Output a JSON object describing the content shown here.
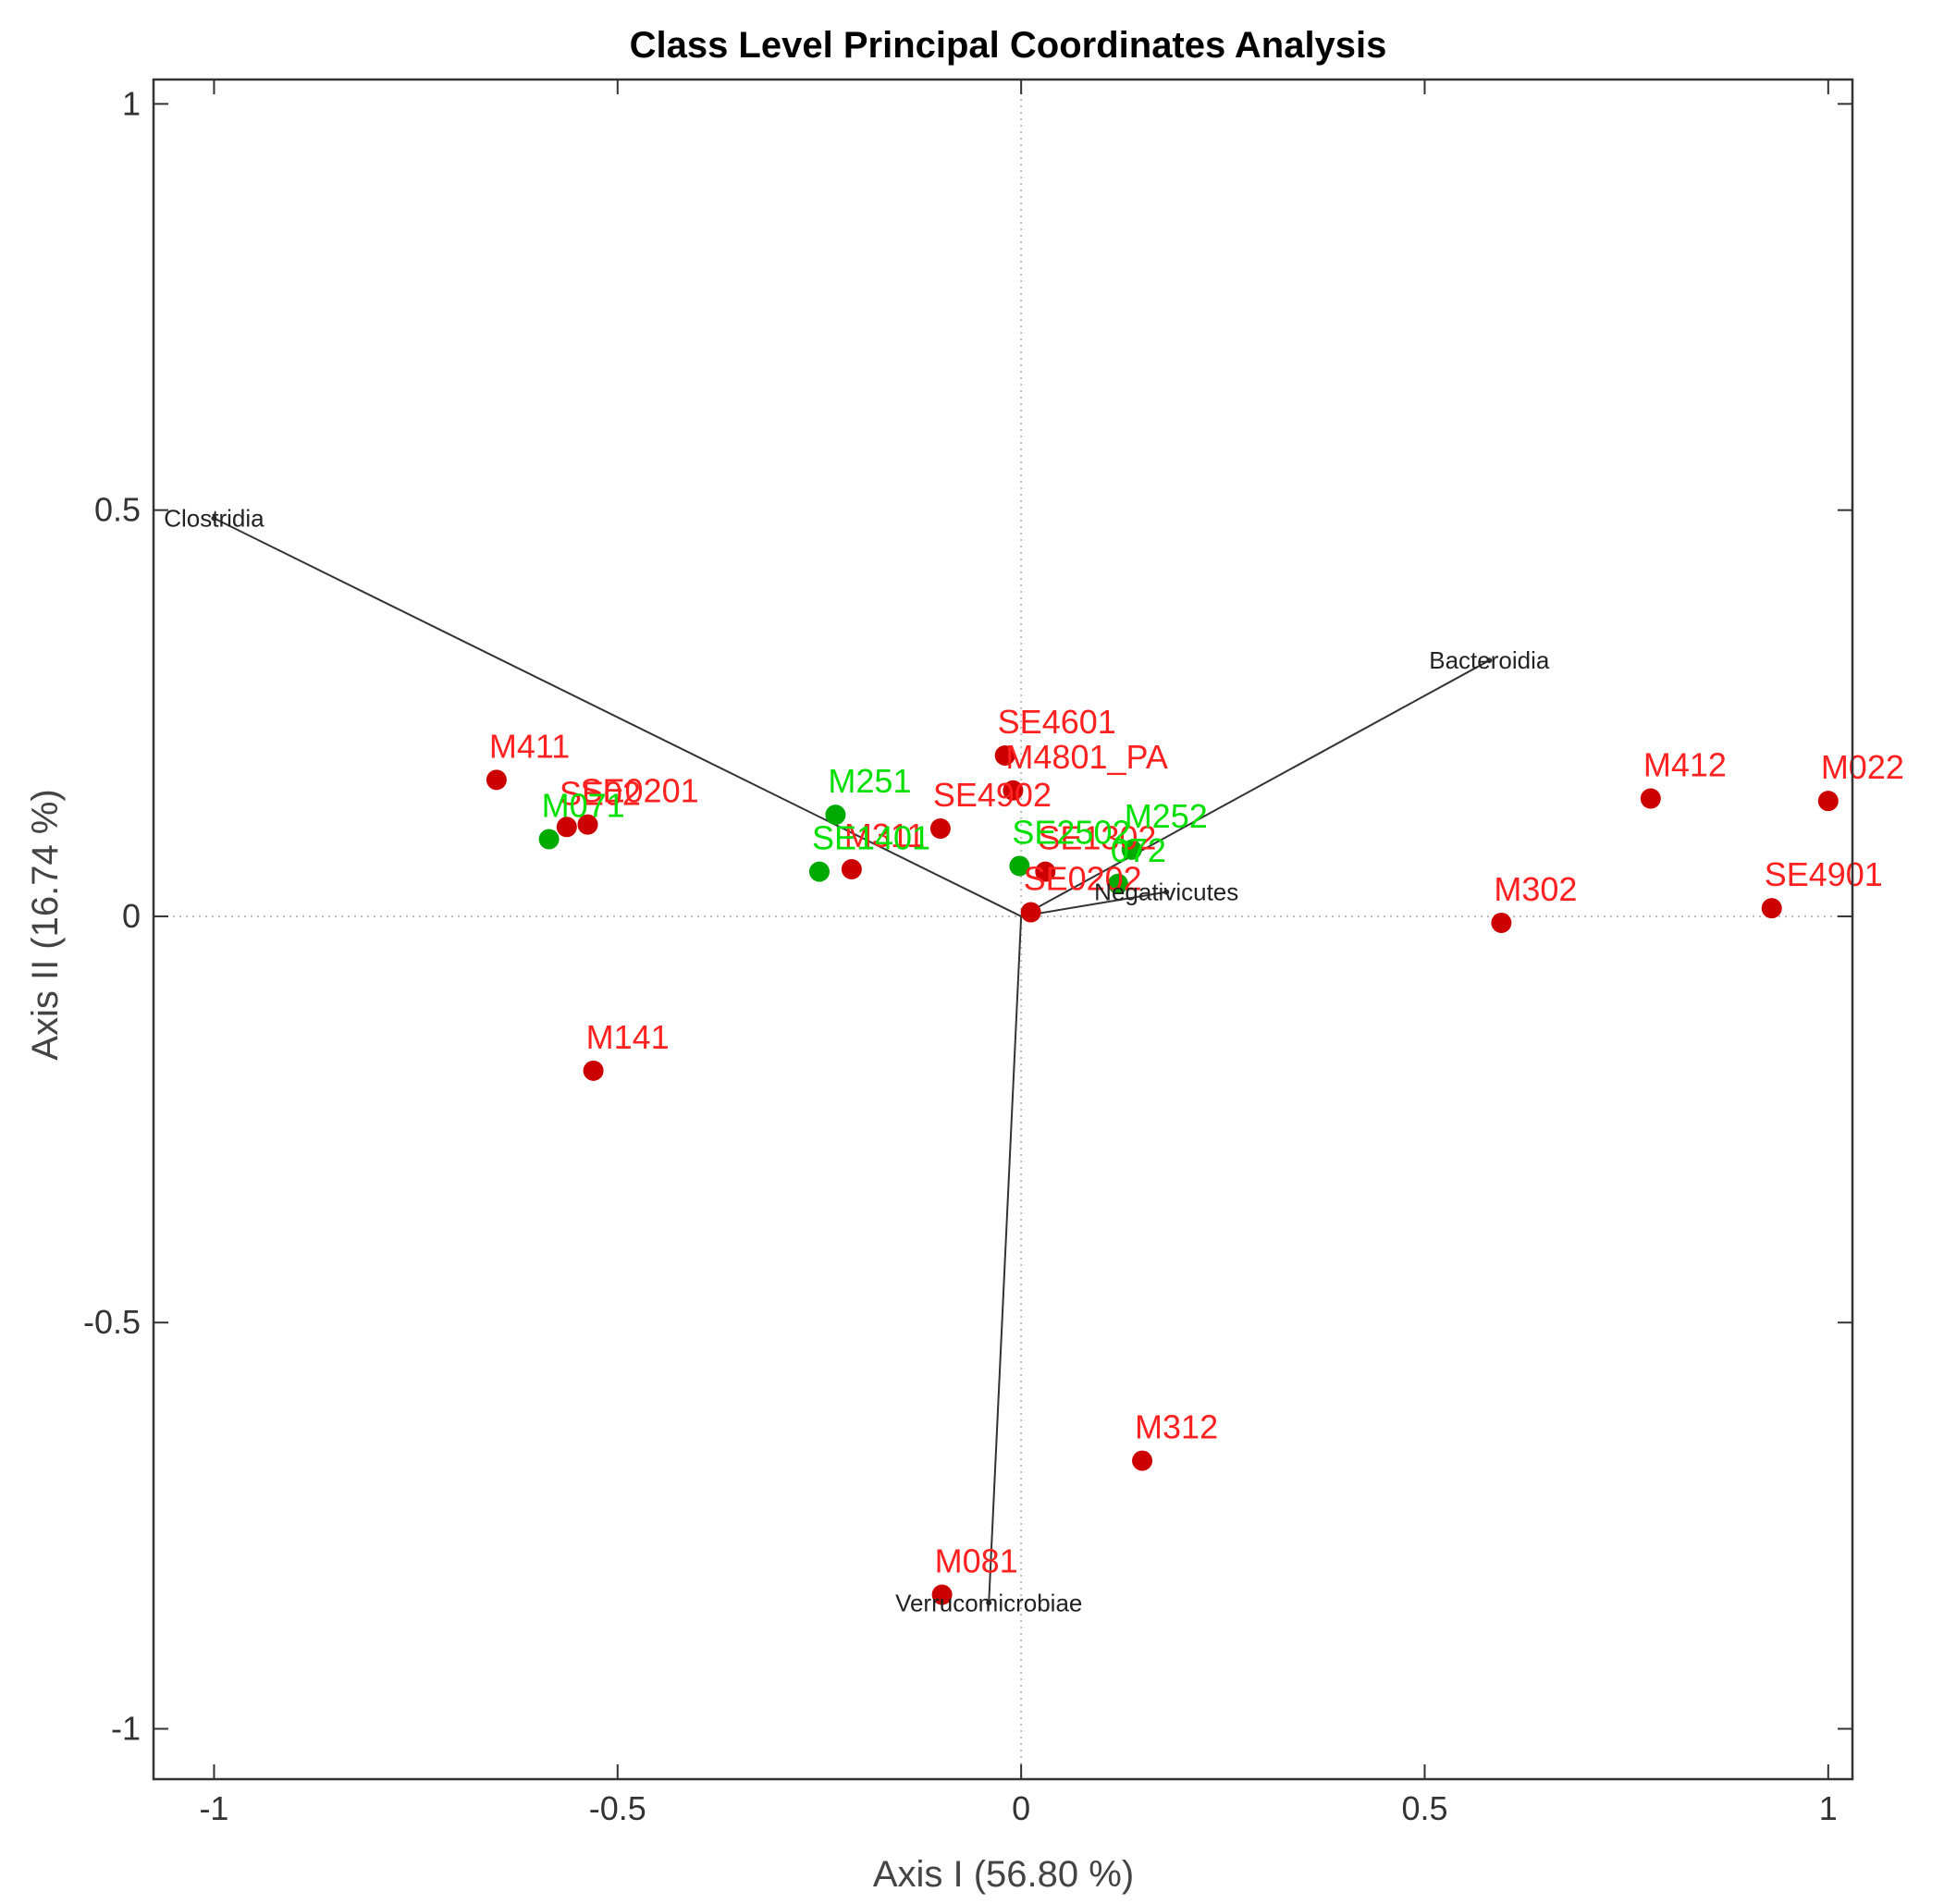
{
  "chart_data": {
    "type": "scatter",
    "title": "Class Level Principal Coordinates Analysis",
    "xlabel": "Axis I (56.80 %)",
    "ylabel": "Axis II (16.74 %)",
    "xlim": [
      -1.075,
      1.03
    ],
    "ylim": [
      -1.062,
      1.03
    ],
    "xticks": [
      -1,
      -0.5,
      0,
      0.5,
      1
    ],
    "yticks": [
      -1,
      -0.5,
      0,
      0.5,
      1
    ],
    "xtick_labels": [
      "-1",
      "-0.5",
      "0",
      "0.5",
      "1"
    ],
    "ytick_labels": [
      "-1",
      "-0.5",
      "0",
      "0.5",
      "1"
    ],
    "zero_lines": true,
    "colors": {
      "red_marker": "#cc0000",
      "red_label": "#ff2020",
      "green_marker": "#00aa00",
      "green_label": "#00e000",
      "vector": "#333333",
      "frame": "#333333",
      "zero_line": "#bbbbbb"
    },
    "series": [
      {
        "color_key": "red",
        "points": [
          {
            "label": "M411",
            "x": -0.65,
            "y": 0.168
          },
          {
            "label": "SE0201",
            "x": -0.537,
            "y": 0.113
          },
          {
            "label": "SE02",
            "x": -0.563,
            "y": 0.11
          },
          {
            "label": "M141",
            "x": -0.53,
            "y": -0.19
          },
          {
            "label": "M311",
            "x": -0.21,
            "y": 0.058
          },
          {
            "label": "SE4601",
            "x": -0.02,
            "y": 0.198
          },
          {
            "label": "M4801_PA",
            "x": -0.01,
            "y": 0.155
          },
          {
            "label": "SE4902",
            "x": -0.1,
            "y": 0.108
          },
          {
            "label": "SE1302",
            "x": 0.03,
            "y": 0.055
          },
          {
            "label": "SE0202",
            "x": 0.012,
            "y": 0.005
          },
          {
            "label": "M412",
            "x": 0.78,
            "y": 0.145
          },
          {
            "label": "M022",
            "x": 1.0,
            "y": 0.142
          },
          {
            "label": "M302",
            "x": 0.595,
            "y": -0.008
          },
          {
            "label": "SE4901",
            "x": 0.93,
            "y": 0.01
          },
          {
            "label": "M312",
            "x": 0.15,
            "y": -0.67
          },
          {
            "label": "M081",
            "x": -0.098,
            "y": -0.835
          }
        ]
      },
      {
        "color_key": "green",
        "points": [
          {
            "label": "M071",
            "x": -0.585,
            "y": 0.095
          },
          {
            "label": "M251",
            "x": -0.23,
            "y": 0.125
          },
          {
            "label": "SE1401",
            "x": -0.25,
            "y": 0.055
          },
          {
            "label": "SE2502",
            "x": -0.002,
            "y": 0.062
          },
          {
            "label": "M252",
            "x": 0.137,
            "y": 0.082
          },
          {
            "label": "072",
            "x": 0.12,
            "y": 0.04
          }
        ]
      }
    ],
    "vectors": [
      {
        "label": "Clostridia",
        "x": -1.0,
        "y": 0.49
      },
      {
        "label": "Bacteroidia",
        "x": 0.58,
        "y": 0.315
      },
      {
        "label": "Negativicutes",
        "x": 0.18,
        "y": 0.03
      },
      {
        "label": "Verrucomicrobiae",
        "x": -0.04,
        "y": -0.845
      }
    ]
  }
}
